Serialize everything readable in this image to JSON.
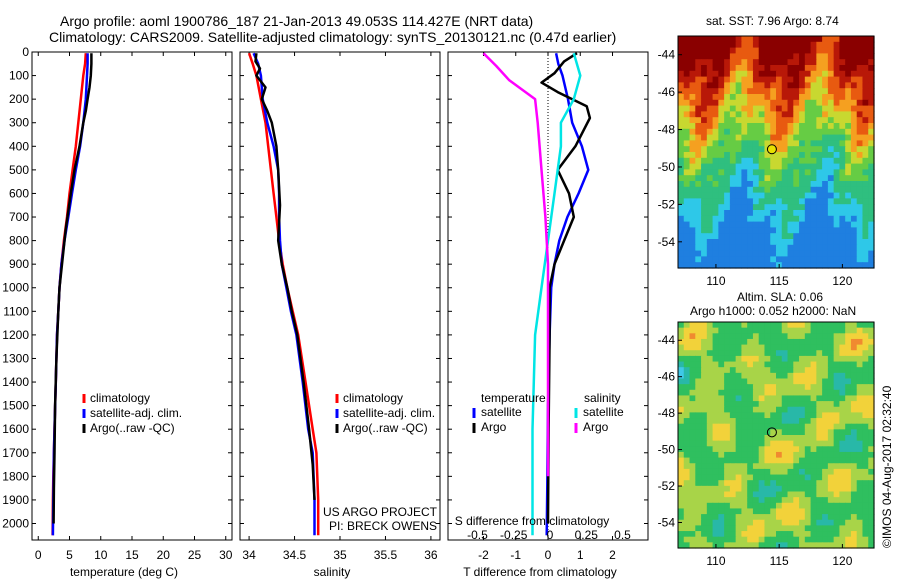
{
  "header": {
    "line1": "Argo profile: aoml 1900786_187 21-Jan-2013 49.053S 114.427E (NRT data)",
    "line2": "Climatology: CARS2009. Satellite-adjusted climatology: synTS_20130121.nc (0.47d earlier)"
  },
  "colors": {
    "climatology": "#ff0000",
    "satellite": "#0000ff",
    "argo": "#000000",
    "salinity_satellite": "#00e5e5",
    "salinity_argo": "#ff00ff"
  },
  "chart_data": [
    {
      "type": "line",
      "id": "temperature",
      "xlabel": "temperature (deg C)",
      "ylabel": "",
      "xlim": [
        -1,
        31
      ],
      "ylim": [
        2070,
        0
      ],
      "xticks": [
        0,
        5,
        10,
        15,
        20,
        25,
        30
      ],
      "yticks": [
        0,
        100,
        200,
        300,
        400,
        500,
        600,
        700,
        800,
        900,
        1000,
        1100,
        1200,
        1300,
        1400,
        1500,
        1600,
        1700,
        1800,
        1900,
        2000
      ],
      "legend": [
        "climatology",
        "satellite-adj. clim.",
        "Argo(..raw -QC)"
      ],
      "series": [
        {
          "name": "climatology",
          "x": [
            7.6,
            7.5,
            7.2,
            6.8,
            6.4,
            6.0,
            5.5,
            5.0,
            4.6,
            4.1,
            3.7,
            3.4,
            3.2,
            3.0,
            2.8,
            2.6,
            2.5,
            2.4,
            2.35,
            2.3
          ],
          "y": [
            5,
            50,
            100,
            200,
            300,
            400,
            500,
            600,
            700,
            800,
            900,
            1000,
            1100,
            1200,
            1400,
            1600,
            1700,
            1800,
            1900,
            2050
          ]
        },
        {
          "name": "satellite-adj. clim.",
          "x": [
            7.9,
            7.9,
            7.8,
            7.6,
            7.2,
            6.7,
            6.0,
            5.4,
            4.8,
            4.2,
            3.7,
            3.4,
            3.2,
            3.0,
            2.8,
            2.6,
            2.5,
            2.45,
            2.4,
            2.35
          ],
          "y": [
            5,
            50,
            100,
            200,
            300,
            400,
            500,
            600,
            700,
            800,
            900,
            1000,
            1100,
            1200,
            1400,
            1600,
            1700,
            1800,
            1900,
            2050
          ]
        },
        {
          "name": "Argo(..raw -QC)",
          "x": [
            8.5,
            8.5,
            8.4,
            8.2,
            7.9,
            7.6,
            7.2,
            6.6,
            5.8,
            5.2,
            4.4,
            3.8,
            3.4,
            3.2,
            2.9,
            2.7,
            2.6,
            2.5,
            2.45
          ],
          "y": [
            5,
            50,
            100,
            150,
            200,
            250,
            300,
            400,
            500,
            600,
            750,
            900,
            1000,
            1100,
            1300,
            1500,
            1700,
            1850,
            2000
          ]
        }
      ]
    },
    {
      "type": "line",
      "id": "salinity",
      "xlabel": "salinity",
      "ylabel": "",
      "xlim": [
        33.9,
        36.1
      ],
      "ylim": [
        2070,
        0
      ],
      "xticks": [
        34,
        34.5,
        35,
        35.5,
        36
      ],
      "xticklabels": [
        "34",
        "34.5",
        "35",
        "35.5",
        "36"
      ],
      "legend": [
        "climatology",
        "satellite-adj. clim.",
        "Argo(..raw -QC)"
      ],
      "annotations": [
        "US ARGO PROJECT",
        "PI: BRECK OWENS"
      ],
      "series": [
        {
          "name": "climatology",
          "x": [
            34.0,
            34.04,
            34.08,
            34.13,
            34.18,
            34.21,
            34.24,
            34.27,
            34.3,
            34.33,
            34.37,
            34.42,
            34.48,
            34.54,
            34.62,
            34.7,
            34.74,
            34.76,
            34.76
          ],
          "y": [
            5,
            50,
            100,
            200,
            300,
            400,
            500,
            600,
            700,
            800,
            900,
            1000,
            1100,
            1200,
            1400,
            1600,
            1700,
            1900,
            2050
          ]
        },
        {
          "name": "satellite-adj. clim.",
          "x": [
            34.05,
            34.1,
            34.13,
            34.15,
            34.2,
            34.27,
            34.32,
            34.33,
            34.33,
            34.34,
            34.36,
            34.41,
            34.46,
            34.52,
            34.59,
            34.65,
            34.7,
            34.72,
            34.72
          ],
          "y": [
            5,
            50,
            100,
            200,
            300,
            400,
            500,
            600,
            700,
            800,
            900,
            1000,
            1100,
            1200,
            1400,
            1600,
            1700,
            1900,
            2050
          ]
        },
        {
          "name": "Argo(..raw -QC)",
          "x": [
            34.08,
            34.07,
            34.12,
            34.08,
            34.18,
            34.14,
            34.2,
            34.25,
            34.3,
            34.32,
            34.34,
            34.32,
            34.36,
            34.42,
            34.47,
            34.53,
            34.6,
            34.66,
            34.7,
            34.72
          ],
          "y": [
            5,
            40,
            70,
            100,
            150,
            200,
            250,
            300,
            400,
            500,
            650,
            800,
            900,
            1000,
            1100,
            1200,
            1400,
            1600,
            1750,
            1900
          ]
        }
      ]
    },
    {
      "type": "line",
      "id": "difference",
      "xlabel": "T difference from climatology",
      "xlabel_top": "S difference from climatology",
      "xlim": [
        -3.1,
        3.1
      ],
      "ylim": [
        2070,
        0
      ],
      "xticks": [
        -2,
        -1,
        0,
        1,
        2
      ],
      "top_ticklabels": [
        "-0.5",
        "-0.25",
        "0",
        "0.25",
        "0.5"
      ],
      "legend_headers": [
        "temperature",
        "salinity"
      ],
      "legend": [
        "satellite",
        "Argo",
        "satellite",
        "Argo"
      ],
      "series": [
        {
          "name": "satellite",
          "quantity": "temperature",
          "x": [
            0.25,
            0.32,
            0.45,
            0.62,
            0.75,
            1.05,
            1.25,
            0.95,
            0.6,
            0.35,
            0.2,
            0.1,
            0.05,
            0.0,
            -0.02,
            -0.04
          ],
          "y": [
            5,
            50,
            100,
            200,
            300,
            400,
            500,
            600,
            700,
            800,
            900,
            1000,
            1200,
            1500,
            1800,
            2050
          ]
        },
        {
          "name": "Argo",
          "quantity": "temperature",
          "x": [
            0.9,
            0.5,
            0.2,
            -0.2,
            0.3,
            1.2,
            1.3,
            0.85,
            0.3,
            0.65,
            0.8,
            0.5,
            0.2,
            0.05,
            0.05,
            0.02,
            0.0
          ],
          "y": [
            5,
            40,
            90,
            130,
            170,
            230,
            280,
            400,
            500,
            600,
            700,
            800,
            900,
            1000,
            1200,
            1600,
            2000
          ]
        },
        {
          "name": "satellite",
          "quantity": "salinity",
          "x": [
            0.2,
            0.25,
            0.2,
            0.1,
            0.1,
            0.05,
            0.0,
            -0.05,
            -0.1,
            -0.12,
            -0.12
          ],
          "y": [
            5,
            100,
            200,
            300,
            400,
            600,
            800,
            1000,
            1200,
            1600,
            2050
          ]
        },
        {
          "name": "Argo",
          "quantity": "salinity",
          "x": [
            -0.5,
            -0.4,
            -0.3,
            -0.1,
            -0.08,
            -0.05,
            -0.02,
            0.0,
            0.0,
            0.0
          ],
          "y": [
            5,
            60,
            120,
            200,
            300,
            500,
            700,
            900,
            1200,
            1800
          ]
        }
      ]
    },
    {
      "type": "heatmap",
      "id": "sst-map",
      "title": "sat. SST: 7.96 Argo: 8.74",
      "xlim": [
        107,
        122.5
      ],
      "ylim": [
        -55.4,
        -43
      ],
      "xticks": [
        110,
        115,
        120
      ],
      "yticks": [
        -44,
        -46,
        -48,
        -50,
        -52,
        -54
      ],
      "marker": {
        "lon": 114.427,
        "lat": -49.053
      }
    },
    {
      "type": "heatmap",
      "id": "sla-map",
      "title": "Altim. SLA: 0.06",
      "subtitle": "Argo h1000: 0.052 h2000: NaN",
      "xlim": [
        107,
        122.5
      ],
      "ylim": [
        -55.4,
        -43
      ],
      "xticks": [
        110,
        115,
        120
      ],
      "yticks": [
        -44,
        -46,
        -48,
        -50,
        -52,
        -54
      ],
      "marker": {
        "lon": 114.427,
        "lat": -49.053
      }
    }
  ],
  "footer": {
    "stamp": "©IMOS 04-Aug-2017 02:32:40"
  }
}
